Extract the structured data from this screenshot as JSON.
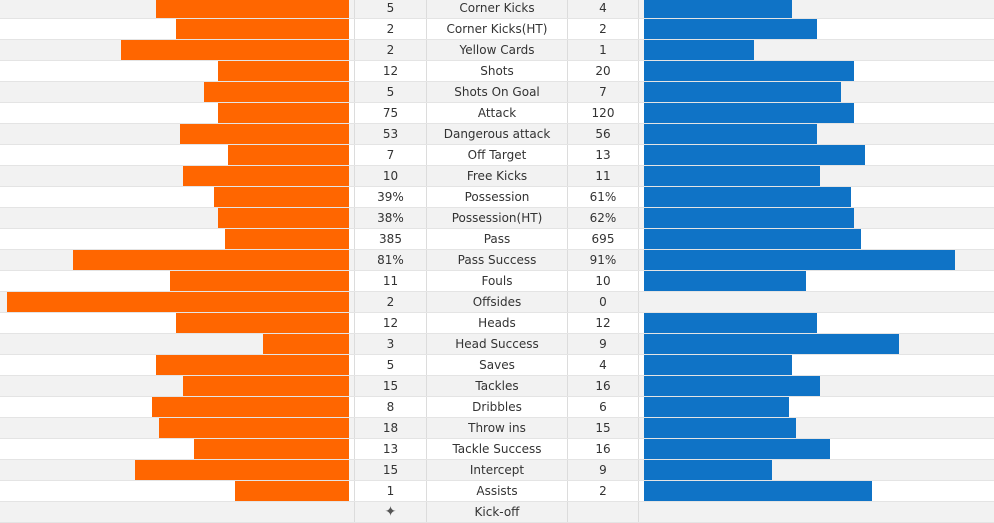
{
  "colors": {
    "home": "#ff6600",
    "away": "#0f73c6"
  },
  "stats": [
    {
      "label": "Corner Kicks",
      "home": "5",
      "away": "4",
      "home_share": 0.56,
      "away_share": 0.43
    },
    {
      "label": "Corner Kicks(HT)",
      "home": "2",
      "away": "2",
      "home_share": 0.5,
      "away_share": 0.5
    },
    {
      "label": "Yellow Cards",
      "home": "2",
      "away": "1",
      "home_share": 0.66,
      "away_share": 0.32
    },
    {
      "label": "Shots",
      "home": "12",
      "away": "20",
      "home_share": 0.38,
      "away_share": 0.61
    },
    {
      "label": "Shots On Goal",
      "home": "5",
      "away": "7",
      "home_share": 0.42,
      "away_share": 0.57
    },
    {
      "label": "Attack",
      "home": "75",
      "away": "120",
      "home_share": 0.38,
      "away_share": 0.61
    },
    {
      "label": "Dangerous attack",
      "home": "53",
      "away": "56",
      "home_share": 0.49,
      "away_share": 0.5
    },
    {
      "label": "Off Target",
      "home": "7",
      "away": "13",
      "home_share": 0.35,
      "away_share": 0.64
    },
    {
      "label": "Free Kicks",
      "home": "10",
      "away": "11",
      "home_share": 0.48,
      "away_share": 0.51
    },
    {
      "label": "Possession",
      "home": "39%",
      "away": "61%",
      "home_share": 0.39,
      "away_share": 0.6
    },
    {
      "label": "Possession(HT)",
      "home": "38%",
      "away": "62%",
      "home_share": 0.38,
      "away_share": 0.61
    },
    {
      "label": "Pass",
      "home": "385",
      "away": "695",
      "home_share": 0.36,
      "away_share": 0.63
    },
    {
      "label": "Pass Success",
      "home": "81%",
      "away": "91%",
      "home_share": 0.8,
      "away_share": 0.9
    },
    {
      "label": "Fouls",
      "home": "11",
      "away": "10",
      "home_share": 0.52,
      "away_share": 0.47
    },
    {
      "label": "Offsides",
      "home": "2",
      "away": "0",
      "home_share": 0.99,
      "away_share": 0
    },
    {
      "label": "Heads",
      "home": "12",
      "away": "12",
      "home_share": 0.5,
      "away_share": 0.5
    },
    {
      "label": "Head Success",
      "home": "3",
      "away": "9",
      "home_share": 0.25,
      "away_share": 0.74
    },
    {
      "label": "Saves",
      "home": "5",
      "away": "4",
      "home_share": 0.56,
      "away_share": 0.43
    },
    {
      "label": "Tackles",
      "home": "15",
      "away": "16",
      "home_share": 0.48,
      "away_share": 0.51
    },
    {
      "label": "Dribbles",
      "home": "8",
      "away": "6",
      "home_share": 0.57,
      "away_share": 0.42
    },
    {
      "label": "Throw ins",
      "home": "18",
      "away": "15",
      "home_share": 0.55,
      "away_share": 0.44
    },
    {
      "label": "Tackle Success",
      "home": "13",
      "away": "16",
      "home_share": 0.45,
      "away_share": 0.54
    },
    {
      "label": "Intercept",
      "home": "15",
      "away": "9",
      "home_share": 0.62,
      "away_share": 0.37
    },
    {
      "label": "Assists",
      "home": "1",
      "away": "2",
      "home_share": 0.33,
      "away_share": 0.66
    }
  ],
  "kickoff": {
    "label": "Kick-off",
    "icon": "kickoff-star-icon"
  }
}
